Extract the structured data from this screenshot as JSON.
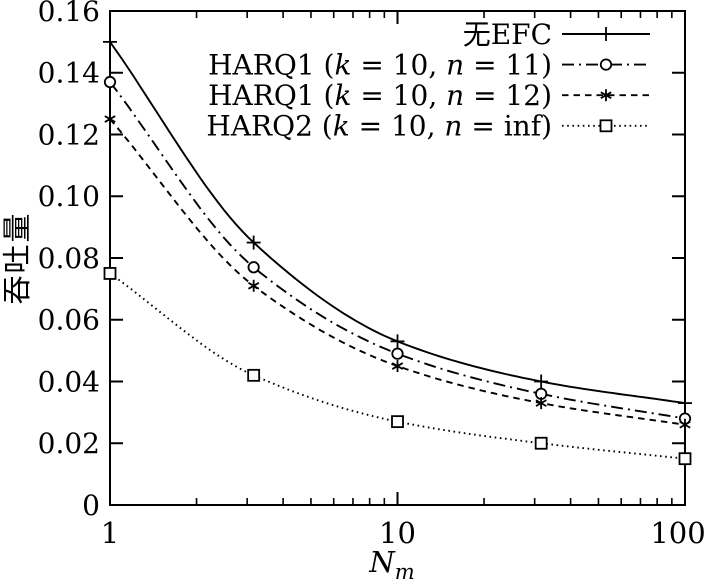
{
  "figure": {
    "background": "#ffffff",
    "ink": "#000000"
  },
  "chart_data": {
    "type": "line",
    "title": "",
    "xlabel": {
      "base": "N",
      "subscript": "m"
    },
    "ylabel": "吞吐量",
    "x_scale": "log",
    "xlim": [
      1,
      100
    ],
    "ylim": [
      0,
      0.16
    ],
    "x_ticks": [
      1,
      10,
      100
    ],
    "x_tick_labels": [
      "1",
      "10",
      "100"
    ],
    "x_minor_ticks": [
      2,
      3,
      4,
      5,
      6,
      7,
      8,
      9,
      20,
      30,
      40,
      50,
      60,
      70,
      80,
      90
    ],
    "y_ticks": [
      0,
      0.02,
      0.04,
      0.06,
      0.08,
      0.1,
      0.12,
      0.14,
      0.16
    ],
    "y_tick_labels": [
      "0",
      "0.02",
      "0.04",
      "0.06",
      "0.08",
      "0.10",
      "0.12",
      "0.14",
      "0.16"
    ],
    "grid": false,
    "legend_position": "top-right",
    "x": [
      1,
      3.16,
      10,
      31.6,
      100
    ],
    "series": [
      {
        "name": "无EFC",
        "line": "solid",
        "marker": "plus",
        "values": [
          0.15,
          0.085,
          0.053,
          0.04,
          0.033
        ]
      },
      {
        "name": "HARQ1 (k = 10, n = 11)",
        "line": "dashdot",
        "marker": "circle",
        "values": [
          0.137,
          0.077,
          0.049,
          0.036,
          0.028
        ]
      },
      {
        "name": "HARQ1 (k = 10, n = 12)",
        "line": "dashed",
        "marker": "asterisk",
        "values": [
          0.125,
          0.071,
          0.045,
          0.033,
          0.026
        ]
      },
      {
        "name": "HARQ2 (k = 10, n = inf)",
        "line": "dotted",
        "marker": "square",
        "values": [
          0.075,
          0.042,
          0.027,
          0.02,
          0.015
        ]
      }
    ]
  }
}
